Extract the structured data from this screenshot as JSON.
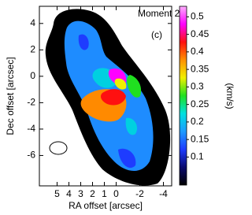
{
  "chart_data": {
    "type": "image",
    "title": "Moment 2",
    "panel_label": "(c)",
    "xlabel": "RA offset [arcsec]",
    "ylabel": "Dec offset [arcsec]",
    "colorbar_label": "(km/s)",
    "xlim": [
      6.5,
      -4.7
    ],
    "xticks": [
      5,
      4,
      3,
      2,
      1,
      0,
      -2,
      -4
    ],
    "ylim": [
      -8.3,
      5.3
    ],
    "yticks": [
      4,
      2,
      0,
      -2,
      -4,
      -6
    ],
    "clim": [
      0.02,
      0.53
    ],
    "cticks": [
      0.1,
      0.15,
      0.2,
      0.25,
      0.3,
      0.35,
      0.4,
      0.45,
      0.5
    ],
    "colormap": [
      "#000000",
      "#0a0a6e",
      "#1e3cff",
      "#1e9bff",
      "#00e0e0",
      "#20e020",
      "#f0f000",
      "#ff9000",
      "#ff1010",
      "#ff00ff",
      "#ffb0ff"
    ]
  }
}
